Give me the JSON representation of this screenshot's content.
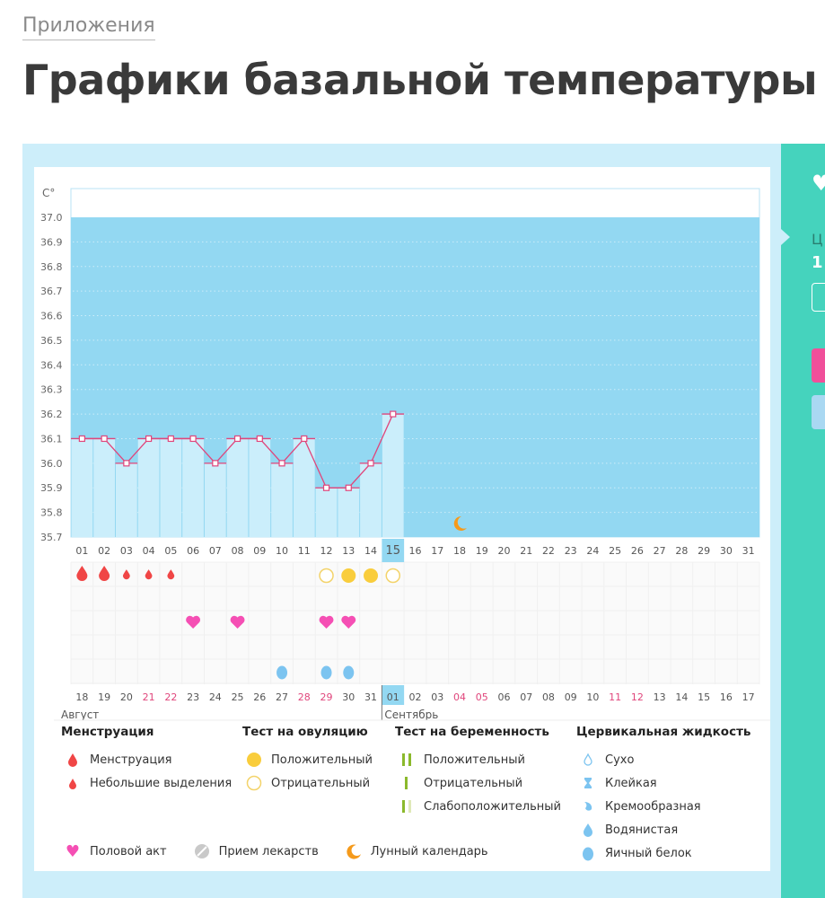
{
  "breadcrumb": "Приложения",
  "page_title": "Графики базальной температуры",
  "chart_data": {
    "type": "line",
    "ylabel": "C°",
    "ylim": [
      35.7,
      37.0
    ],
    "yticks": [
      "37.0",
      "36.9",
      "36.8",
      "36.7",
      "36.6",
      "36.5",
      "36.4",
      "36.3",
      "36.2",
      "36.1",
      "36.0",
      "35.9",
      "35.8",
      "35.7"
    ],
    "cycle_days": [
      "01",
      "02",
      "03",
      "04",
      "05",
      "06",
      "07",
      "08",
      "09",
      "10",
      "11",
      "12",
      "13",
      "14",
      "15",
      "16",
      "17",
      "18",
      "19",
      "20",
      "21",
      "22",
      "23",
      "24",
      "25",
      "26",
      "27",
      "28",
      "29",
      "30",
      "31"
    ],
    "current_day": "15",
    "temperatures": [
      36.1,
      36.1,
      36.0,
      36.1,
      36.1,
      36.1,
      36.0,
      36.1,
      36.1,
      36.0,
      36.1,
      35.9,
      35.9,
      36.0,
      36.2
    ],
    "dates": [
      "18",
      "19",
      "20",
      "21",
      "22",
      "23",
      "24",
      "25",
      "26",
      "27",
      "28",
      "29",
      "30",
      "31",
      "01",
      "02",
      "03",
      "04",
      "05",
      "06",
      "07",
      "08",
      "09",
      "10",
      "11",
      "12",
      "13",
      "14",
      "15",
      "16",
      "17"
    ],
    "weekend_dates_idx": [
      3,
      4,
      10,
      11,
      17,
      18,
      24,
      25
    ],
    "months": [
      "Август",
      "Сентябрь"
    ],
    "menstruation": {
      "heavy": [
        1,
        2
      ],
      "light": [
        3,
        4,
        5
      ]
    },
    "ovulation_test": {
      "positive": [
        13,
        14
      ],
      "negative": [
        12,
        15
      ]
    },
    "intercourse": [
      6,
      8,
      12,
      13
    ],
    "cervical_egg_white": [
      10,
      12,
      13
    ],
    "moon": [
      18
    ],
    "colors": {
      "bg": "#93d8f2",
      "bar": "#cbeefb",
      "line": "#e0457b",
      "menses": "#f04646",
      "ovulation": "#f9cd3c",
      "heart": "#f54fb4",
      "cervical": "#7cc4f0",
      "moon": "#f59a1b",
      "weekend": "#e0457b"
    }
  },
  "legend": {
    "menstruation": {
      "title": "Менструация",
      "items": [
        "Менструация",
        "Небольшие выделения"
      ]
    },
    "ovulation": {
      "title": "Тест на овуляцию",
      "items": [
        "Положительный",
        "Отрицательный"
      ]
    },
    "pregnancy": {
      "title": "Тест на беременность",
      "items": [
        "Положительный",
        "Отрицательный",
        "Слабоположительный"
      ]
    },
    "cervical": {
      "title": "Цервикальная жидкость",
      "items": [
        "Сухо",
        "Клейкая",
        "Кремообразная",
        "Водянистая",
        "Яичный белок"
      ]
    },
    "other": [
      "Половой акт",
      "Прием лекарств",
      "Лунный календарь"
    ]
  },
  "side": {
    "label": "Ц",
    "value": "1"
  }
}
